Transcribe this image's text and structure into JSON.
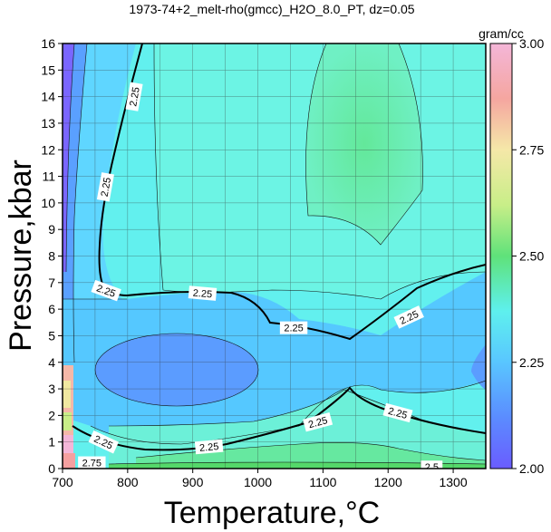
{
  "chart_data": {
    "type": "heatmap",
    "title": "1973-74+2_melt-rho(gmcc)_H2O_8.0_PT, dz=0.05",
    "xlabel": "Temperature,°C",
    "ylabel": "Pressure,kbar",
    "xlim": [
      700,
      1350
    ],
    "ylim": [
      0,
      16
    ],
    "x_ticks": [
      "700",
      "800",
      "900",
      "1000",
      "1100",
      "1200",
      "1300"
    ],
    "y_ticks": [
      "0",
      "1",
      "2",
      "3",
      "4",
      "5",
      "6",
      "7",
      "8",
      "9",
      "10",
      "11",
      "12",
      "13",
      "14",
      "15",
      "16"
    ],
    "grid": true,
    "colorbar": {
      "label": "gram/cc",
      "range": [
        2.0,
        3.0
      ],
      "ticks": [
        "2.00",
        "2.25",
        "2.50",
        "2.75",
        "3.00"
      ]
    },
    "contour_labels": [
      {
        "text": "2.25",
        "x": 810,
        "y": 14.0,
        "angle": -80
      },
      {
        "text": "2.25",
        "x": 766,
        "y": 10.6,
        "angle": -80
      },
      {
        "text": "2.25",
        "x": 767,
        "y": 6.7,
        "angle": 20
      },
      {
        "text": "2.25",
        "x": 915,
        "y": 6.6,
        "angle": 5
      },
      {
        "text": "2.25",
        "x": 1055,
        "y": 5.3,
        "angle": 0
      },
      {
        "text": "2.25",
        "x": 1232,
        "y": 5.7,
        "angle": -25
      },
      {
        "text": "2.25",
        "x": 1092,
        "y": 1.75,
        "angle": -15
      },
      {
        "text": "2.25",
        "x": 1215,
        "y": 2.1,
        "angle": 15
      },
      {
        "text": "2.25",
        "x": 763,
        "y": 1.0,
        "angle": 25
      },
      {
        "text": "2.25",
        "x": 925,
        "y": 0.82,
        "angle": -5
      },
      {
        "text": "2.75",
        "x": 745,
        "y": 0.22,
        "angle": 0
      },
      {
        "text": "2.5",
        "x": 1267,
        "y": 0.06,
        "angle": 0
      }
    ]
  }
}
